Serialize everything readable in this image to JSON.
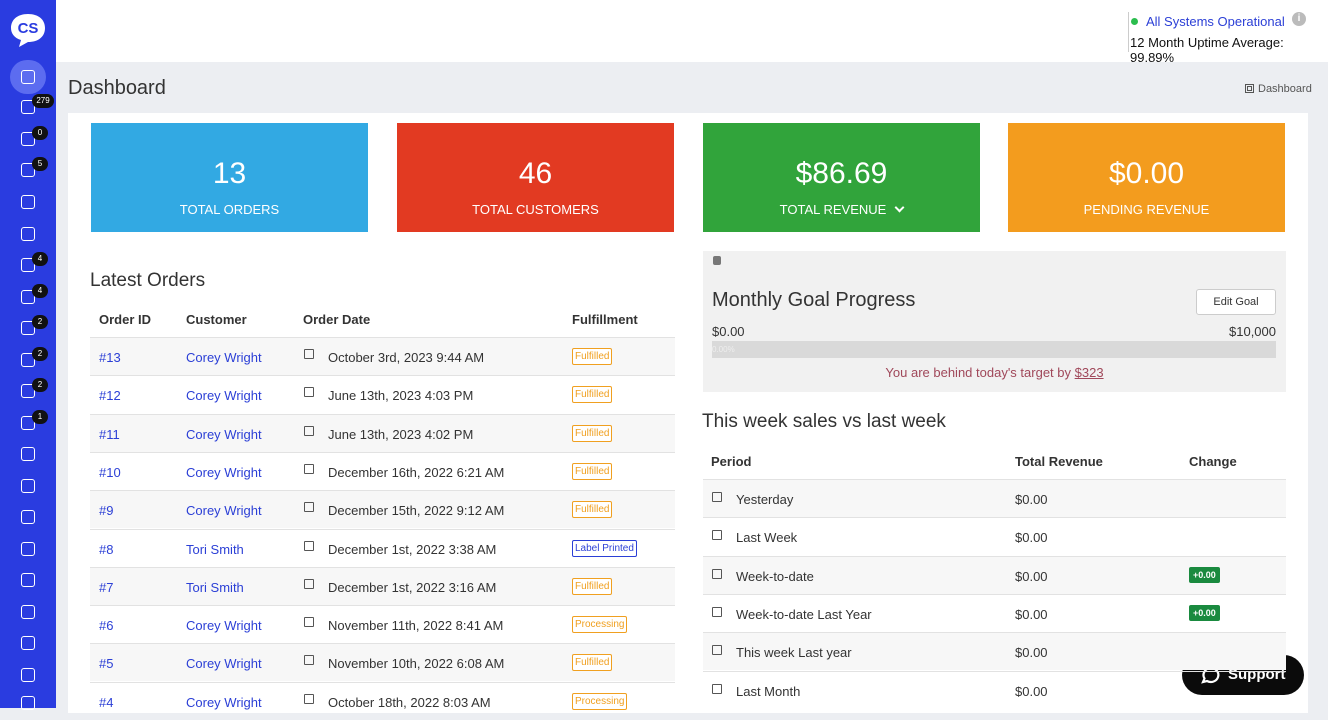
{
  "sidebar": {
    "logo": "CS",
    "badges": [
      "279",
      "0",
      "5",
      "4",
      "4",
      "2",
      "2",
      "2",
      "1"
    ]
  },
  "status": {
    "label": "All Systems Operational",
    "uptime": "12 Month Uptime Average: 99.89%"
  },
  "header": {
    "title": "Dashboard",
    "breadcrumb": "Dashboard"
  },
  "stats": [
    {
      "value": "13",
      "label": "TOTAL ORDERS",
      "color": "#32a9e3"
    },
    {
      "value": "46",
      "label": "TOTAL CUSTOMERS",
      "color": "#e23a22"
    },
    {
      "value": "$86.69",
      "label": "TOTAL REVENUE",
      "color": "#31a43b"
    },
    {
      "value": "$0.00",
      "label": "PENDING REVENUE",
      "color": "#f39c1e"
    }
  ],
  "orders": {
    "title": "Latest Orders",
    "columns": [
      "Order ID",
      "Customer",
      "Order Date",
      "Fulfillment"
    ],
    "rows": [
      {
        "id": "#13",
        "customer": "Corey Wright",
        "date": "October 3rd, 2023 9:44 AM",
        "status": "Fulfilled",
        "color": "#f0a020"
      },
      {
        "id": "#12",
        "customer": "Corey Wright",
        "date": "June 13th, 2023 4:03 PM",
        "status": "Fulfilled",
        "color": "#f0a020"
      },
      {
        "id": "#11",
        "customer": "Corey Wright",
        "date": "June 13th, 2023 4:02 PM",
        "status": "Fulfilled",
        "color": "#f0a020"
      },
      {
        "id": "#10",
        "customer": "Corey Wright",
        "date": "December 16th, 2022 6:21 AM",
        "status": "Fulfilled",
        "color": "#f0a020"
      },
      {
        "id": "#9",
        "customer": "Corey Wright",
        "date": "December 15th, 2022 9:12 AM",
        "status": "Fulfilled",
        "color": "#f0a020"
      },
      {
        "id": "#8",
        "customer": "Tori Smith",
        "date": "December 1st, 2022 3:38 AM",
        "status": "Label Printed",
        "color": "#2b3fd6"
      },
      {
        "id": "#7",
        "customer": "Tori Smith",
        "date": "December 1st, 2022 3:16 AM",
        "status": "Fulfilled",
        "color": "#f0a020"
      },
      {
        "id": "#6",
        "customer": "Corey Wright",
        "date": "November 11th, 2022 8:41 AM",
        "status": "Processing",
        "color": "#f0a020"
      },
      {
        "id": "#5",
        "customer": "Corey Wright",
        "date": "November 10th, 2022 6:08 AM",
        "status": "Fulfilled",
        "color": "#f0a020"
      },
      {
        "id": "#4",
        "customer": "Corey Wright",
        "date": "October 18th, 2022 8:03 AM",
        "status": "Processing",
        "color": "#f0a020"
      }
    ]
  },
  "goal": {
    "title": "Monthly Goal Progress",
    "button": "Edit Goal",
    "min": "$0.00",
    "max": "$10,000",
    "progress": "0.00%",
    "message": "You are behind today's target by",
    "amount": "$323"
  },
  "sales": {
    "title": "This week sales vs last week",
    "columns": [
      "Period",
      "Total Revenue",
      "Change"
    ],
    "rows": [
      {
        "period": "Yesterday",
        "revenue": "$0.00"
      },
      {
        "period": "Last Week",
        "revenue": "$0.00"
      },
      {
        "period": "Week-to-date",
        "revenue": "$0.00",
        "change": "+0.00"
      },
      {
        "period": "Week-to-date Last Year",
        "revenue": "$0.00",
        "change": "+0.00"
      },
      {
        "period": "This week Last year",
        "revenue": "$0.00"
      },
      {
        "period": "Last Month",
        "revenue": "$0.00"
      }
    ]
  },
  "support": "Support"
}
